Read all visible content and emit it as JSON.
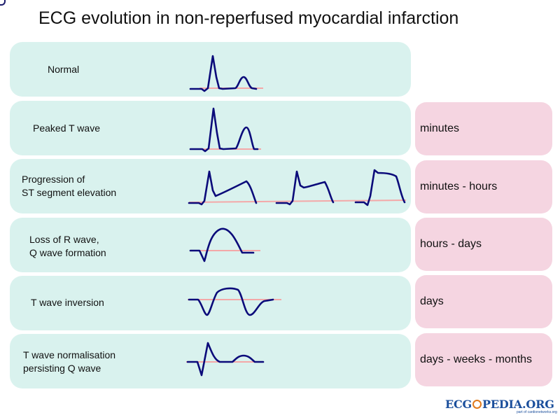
{
  "title": "ECG evolution in non-reperfused myocardial infarction",
  "stages": [
    {
      "line1": "Normal",
      "line2": "",
      "time": ""
    },
    {
      "line1": "Peaked T wave",
      "line2": "",
      "time": "minutes"
    },
    {
      "line1": "Progression of",
      "line2": "ST segment elevation",
      "time": "minutes - hours"
    },
    {
      "line1": "Loss of R wave,",
      "line2": "Q wave formation",
      "time": "hours - days"
    },
    {
      "line1": "T wave inversion",
      "line2": "",
      "time": "days"
    },
    {
      "line1": "T wave normalisation",
      "line2": "persisting Q wave",
      "time": "days - weeks - months"
    }
  ],
  "logo": {
    "text_left": "ECG",
    "text_right": "PEDIA.ORG",
    "subtitle": "part of cardionetworks.org"
  },
  "colors": {
    "stage_bg": "#d9f2ee",
    "time_bg": "#f5d5e1",
    "trace": "#0b0b7a",
    "baseline": "#f4a8a8"
  }
}
